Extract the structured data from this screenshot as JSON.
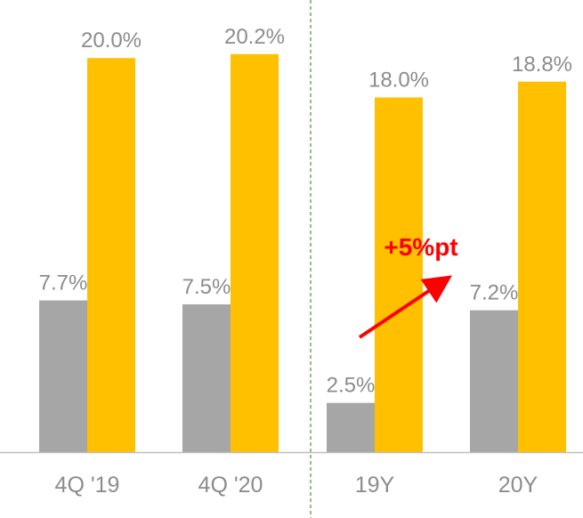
{
  "chart_data": {
    "type": "bar",
    "categories": [
      "4Q '19",
      "4Q '20",
      "19Y",
      "20Y"
    ],
    "series": [
      {
        "values": [
          7.7,
          7.5,
          2.5,
          7.2
        ],
        "labels": [
          "7.7%",
          "7.5%",
          "2.5%",
          "7.2%"
        ],
        "color": "#a6a6a6"
      },
      {
        "values": [
          20.0,
          20.2,
          18.0,
          18.8
        ],
        "labels": [
          "20.0%",
          "20.2%",
          "18.0%",
          "18.8%"
        ],
        "color": "#ffc000"
      }
    ],
    "ylim": [
      0,
      21.5
    ],
    "divider_after_category": 1,
    "divider_color": "#5b9b3f",
    "axis_color": "#bfbfbf",
    "annotation": {
      "text": "+5%pt",
      "color": "#ff0000",
      "from_category": 2,
      "to_category": 3
    },
    "grid": false,
    "legend": "none"
  }
}
